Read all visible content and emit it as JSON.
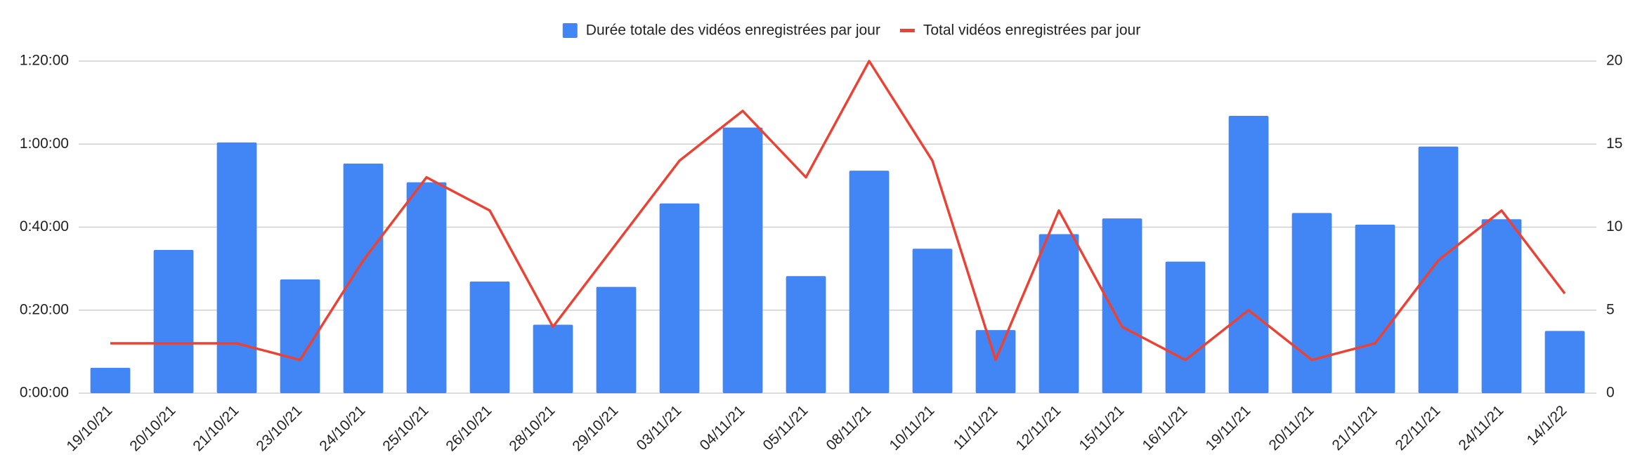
{
  "chart_data": {
    "type": "bar-line",
    "categories": [
      "19/10/21",
      "20/10/21",
      "21/10/21",
      "23/10/21",
      "24/10/21",
      "25/10/21",
      "26/10/21",
      "28/10/21",
      "29/10/21",
      "03/11/21",
      "04/11/21",
      "05/11/21",
      "08/11/21",
      "10/11/21",
      "11/11/21",
      "12/11/21",
      "15/11/21",
      "16/11/21",
      "19/11/21",
      "20/11/21",
      "21/11/21",
      "22/11/21",
      "24/11/21",
      "14/1/22"
    ],
    "series": [
      {
        "name": "Durée totale des vidéos enregistrées par jour",
        "type": "bar",
        "color": "#4285f4",
        "values": [
          6.1,
          34.5,
          60.4,
          27.4,
          55.3,
          50.8,
          26.9,
          16.5,
          25.6,
          45.7,
          64,
          28.2,
          53.6,
          34.8,
          15.2,
          38.3,
          42.1,
          31.7,
          66.8,
          43.4,
          40.6,
          59.4,
          41.9,
          15
        ]
      },
      {
        "name": "Total vidéos enregistrées par jour",
        "type": "line",
        "axis": "y2",
        "color": "#ea4335",
        "values": [
          3,
          3,
          3,
          2,
          8,
          13,
          11,
          4,
          9,
          14,
          17,
          13,
          20,
          14,
          2,
          11,
          4,
          2,
          5,
          2,
          3,
          8,
          11,
          6
        ]
      }
    ],
    "ylim": [
      0,
      80
    ],
    "yticks": [
      {
        "value": 0,
        "label": "0:00:00"
      },
      {
        "value": 20,
        "label": "0:20:00"
      },
      {
        "value": 40,
        "label": "0:40:00"
      },
      {
        "value": 60,
        "label": "1:00:00"
      },
      {
        "value": 80,
        "label": "1:20:00"
      }
    ],
    "y2lim": [
      0,
      20
    ],
    "y2ticks": [
      0,
      5,
      10,
      15,
      20
    ],
    "grid": true,
    "legend": "top"
  }
}
